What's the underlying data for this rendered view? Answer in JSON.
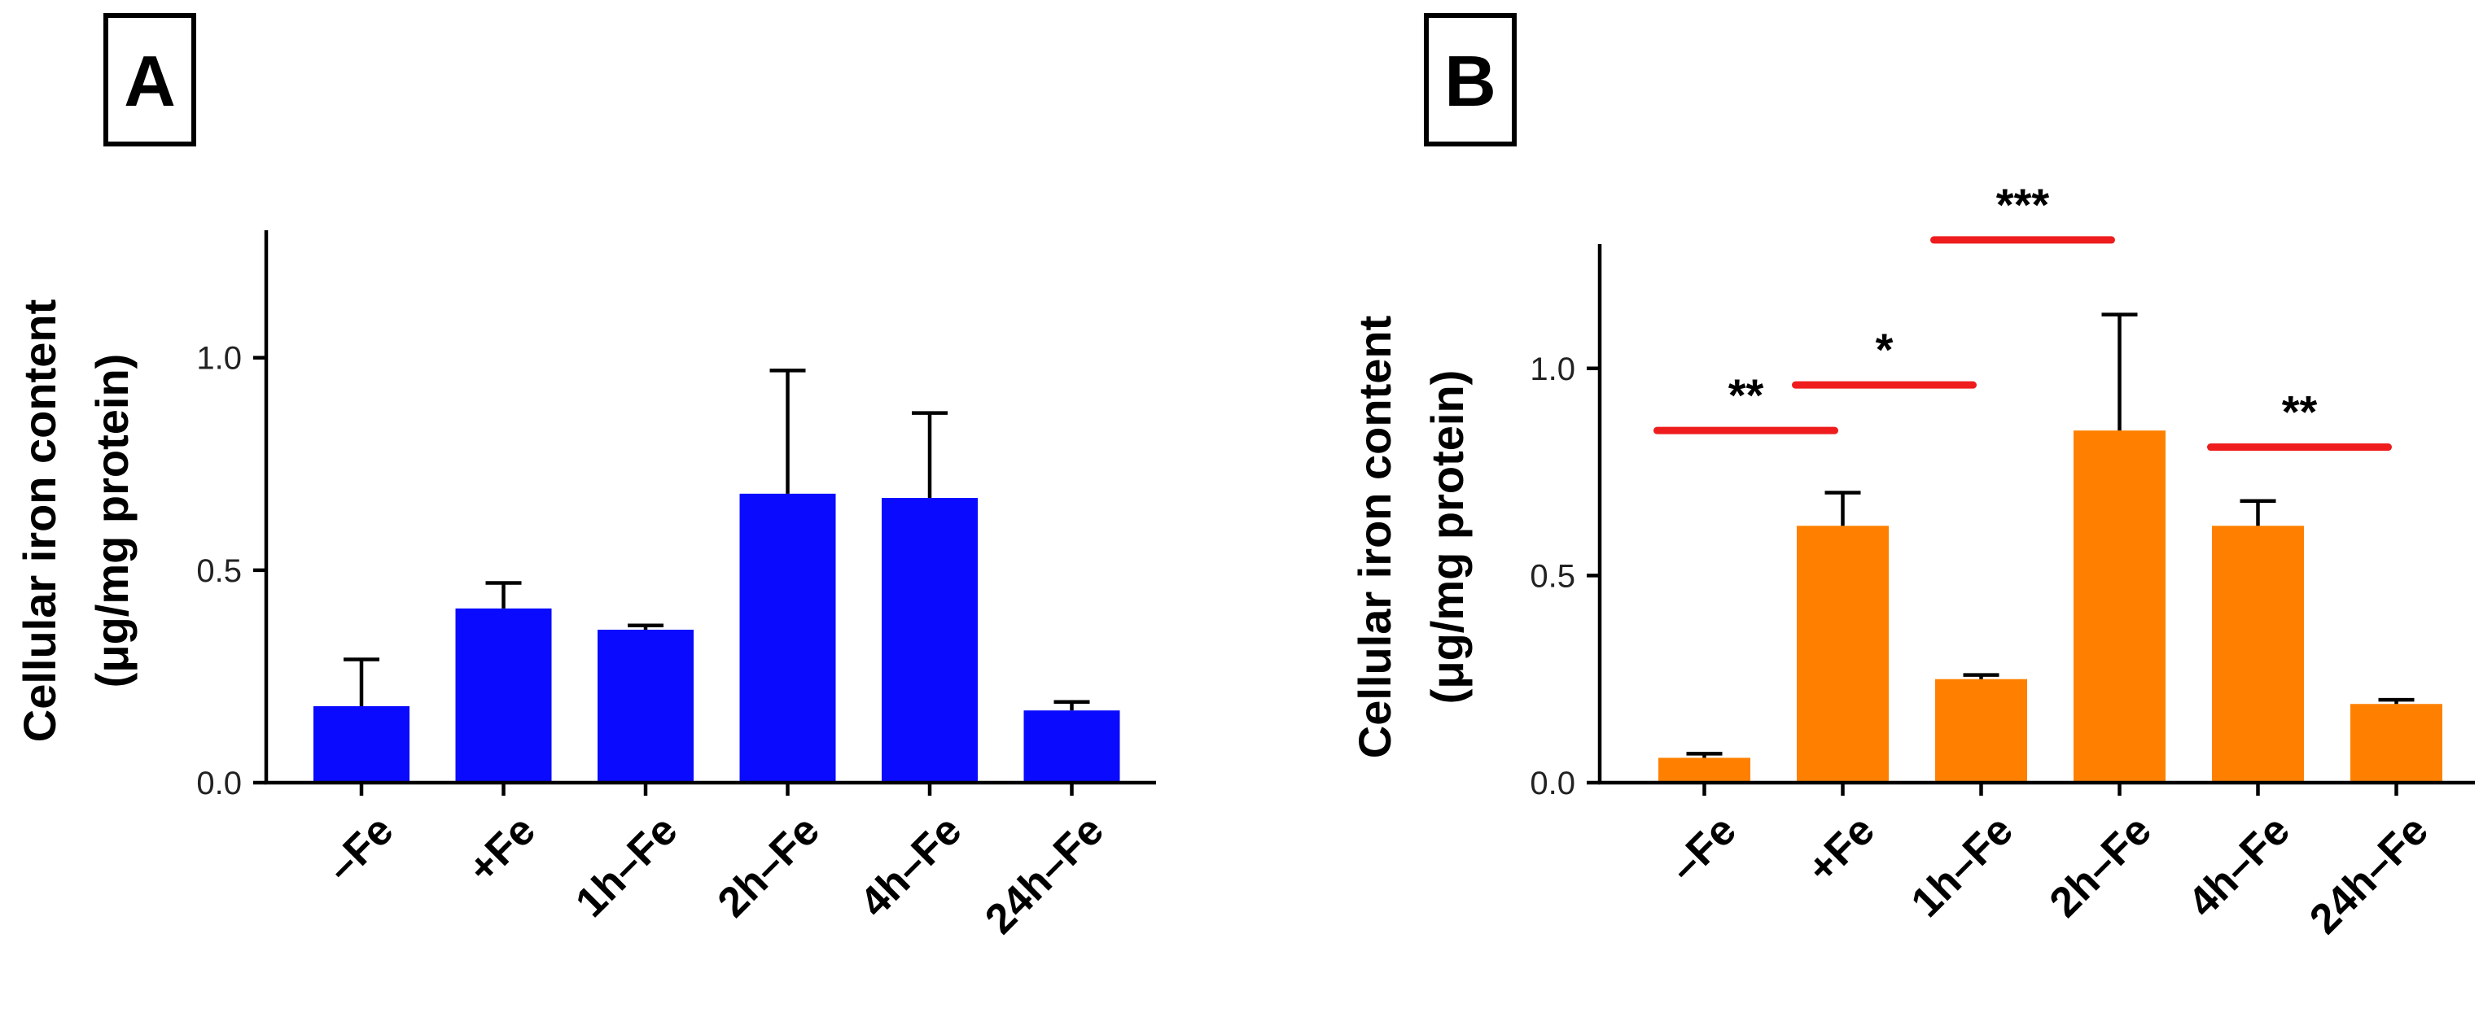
{
  "panel_a": {
    "label": "A"
  },
  "panel_b": {
    "label": "B"
  },
  "chart_data": [
    {
      "panel": "A",
      "type": "bar",
      "color": "#0a0aff",
      "categories": [
        "–Fe",
        "+Fe",
        "1h–Fe",
        "2h–Fe",
        "4h–Fe",
        "24h–Fe"
      ],
      "values": [
        0.18,
        0.41,
        0.36,
        0.68,
        0.67,
        0.17
      ],
      "errors": [
        0.11,
        0.06,
        0.01,
        0.29,
        0.2,
        0.02
      ],
      "ylim": [
        0,
        1.3
      ],
      "yticks": [
        0.0,
        0.5,
        1.0
      ],
      "ytick_labels": [
        "0.0",
        "0.5",
        "1.0"
      ],
      "ylabel_line1": "Cellular iron content",
      "ylabel_line2": "(μg/mg protein)",
      "significance": []
    },
    {
      "panel": "B",
      "type": "bar",
      "color": "#ff8000",
      "categories": [
        "–Fe",
        "+Fe",
        "1h–Fe",
        "2h–Fe",
        "4h–Fe",
        "24h–Fe"
      ],
      "values": [
        0.06,
        0.62,
        0.25,
        0.85,
        0.62,
        0.19
      ],
      "errors": [
        0.01,
        0.08,
        0.01,
        0.28,
        0.06,
        0.01
      ],
      "ylim": [
        0,
        1.3
      ],
      "yticks": [
        0.0,
        0.5,
        1.0
      ],
      "ytick_labels": [
        "0.0",
        "0.5",
        "1.0"
      ],
      "ylabel_line1": "Cellular iron content",
      "ylabel_line2": "(μg/mg protein)",
      "significance_color": "#ee1c1c",
      "significance": [
        {
          "from": 0,
          "to": 1,
          "y": 0.85,
          "label": "**"
        },
        {
          "from": 1,
          "to": 2,
          "y": 0.96,
          "label": "*"
        },
        {
          "from": 2,
          "to": 3,
          "y": 1.31,
          "label": "***"
        },
        {
          "from": 4,
          "to": 5,
          "y": 0.81,
          "label": "**"
        }
      ]
    }
  ]
}
